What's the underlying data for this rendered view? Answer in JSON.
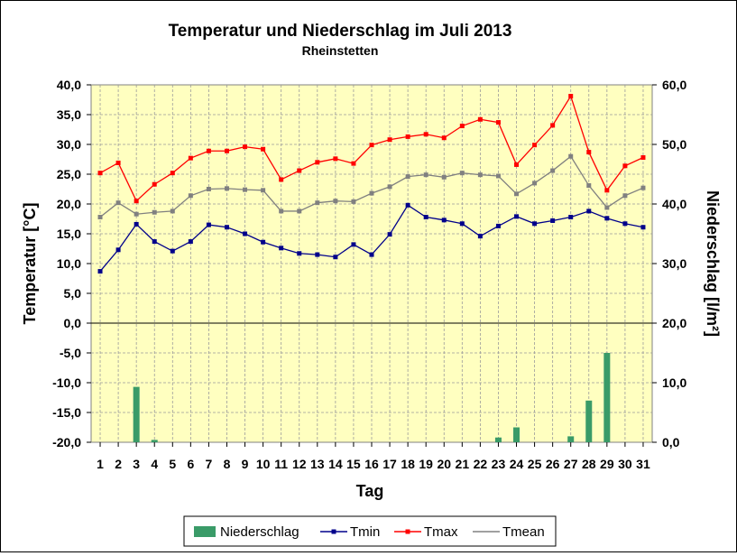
{
  "chart_data": {
    "type": "line",
    "title": "Temperatur und Niederschlag im Juli 2013",
    "subtitle": "Rheinstetten",
    "xlabel": "Tag",
    "ylabel": "Temperatur [°C]",
    "y2label": "Niederschlag [l/m²]",
    "ylim": [
      -20,
      40
    ],
    "y2lim": [
      0,
      60
    ],
    "yticks": [
      "-20,0",
      "-15,0",
      "-10,0",
      "-5,0",
      "0,0",
      "5,0",
      "10,0",
      "15,0",
      "20,0",
      "25,0",
      "30,0",
      "35,0",
      "40,0"
    ],
    "y2ticks": [
      "0,0",
      "10,0",
      "20,0",
      "30,0",
      "40,0",
      "50,0",
      "60,0"
    ],
    "grid": true,
    "legend_position": "bottom",
    "colors": {
      "plot_bg": "#ffffc0",
      "bar": "#3a9b68",
      "tmin": "#00008b",
      "tmax": "#ff0000",
      "tmean": "#808080",
      "grid": "#9b9b9b"
    },
    "categories": [
      "1",
      "2",
      "3",
      "4",
      "5",
      "6",
      "7",
      "8",
      "9",
      "10",
      "11",
      "12",
      "13",
      "14",
      "15",
      "16",
      "17",
      "18",
      "19",
      "20",
      "21",
      "22",
      "23",
      "24",
      "25",
      "26",
      "27",
      "28",
      "29",
      "30",
      "31"
    ],
    "series": [
      {
        "name": "Niederschlag",
        "type": "bar",
        "axis": "right",
        "color": "#3a9b68",
        "values": [
          0,
          0,
          9.3,
          0.4,
          0,
          0,
          0,
          0,
          0,
          0,
          0,
          0,
          0,
          0,
          0,
          0,
          0,
          0,
          0,
          0,
          0,
          0,
          0.8,
          2.5,
          0,
          0,
          1.0,
          7.0,
          15.0,
          0,
          0
        ]
      },
      {
        "name": "Tmin",
        "type": "line",
        "axis": "left",
        "color": "#00008b",
        "values": [
          8.7,
          12.3,
          16.6,
          13.7,
          12.1,
          13.7,
          16.5,
          16.1,
          15.0,
          13.6,
          12.6,
          11.7,
          11.5,
          11.1,
          13.2,
          11.5,
          14.9,
          19.8,
          17.8,
          17.3,
          16.7,
          14.6,
          16.3,
          17.9,
          16.7,
          17.2,
          17.8,
          18.8,
          17.6,
          16.7,
          16.1
        ]
      },
      {
        "name": "Tmax",
        "type": "line",
        "axis": "left",
        "color": "#ff0000",
        "values": [
          25.2,
          26.9,
          20.5,
          23.3,
          25.2,
          27.7,
          28.9,
          28.9,
          29.6,
          29.2,
          24.1,
          25.6,
          27.0,
          27.6,
          26.8,
          29.9,
          30.8,
          31.3,
          31.7,
          31.1,
          33.1,
          34.2,
          33.7,
          26.6,
          29.9,
          33.2,
          38.1,
          28.7,
          22.3,
          26.4,
          27.8
        ]
      },
      {
        "name": "Tmean",
        "type": "line",
        "axis": "left",
        "color": "#808080",
        "values": [
          17.8,
          20.2,
          18.3,
          18.6,
          18.8,
          21.4,
          22.5,
          22.6,
          22.4,
          22.3,
          18.8,
          18.8,
          20.2,
          20.5,
          20.4,
          21.8,
          22.9,
          24.6,
          24.9,
          24.5,
          25.2,
          24.9,
          24.7,
          21.7,
          23.5,
          25.6,
          28.0,
          23.1,
          19.4,
          21.4,
          22.7
        ]
      }
    ]
  }
}
